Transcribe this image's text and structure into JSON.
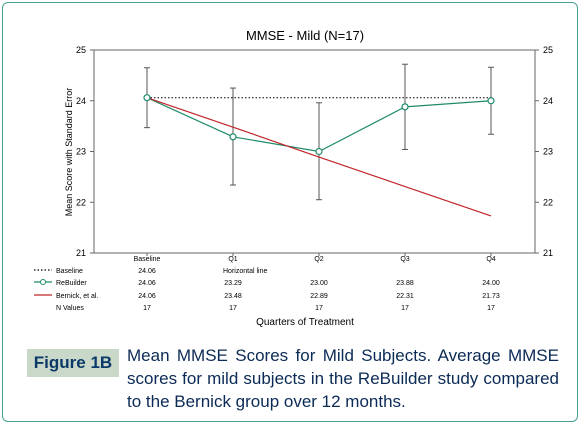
{
  "figure": {
    "label": "Figure 1B",
    "caption": "Mean MMSE Scores for Mild Subjects. Average MMSE scores for mild subjects in the ReBuilder study compared to the Bernick group over 12 months."
  },
  "chart_data": {
    "type": "line",
    "title": "MMSE - Mild (N=17)",
    "xlabel": "Quarters of Treatment",
    "ylabel": "Mean Score with Standard Error",
    "ylim": [
      21,
      25
    ],
    "yticks": [
      "21",
      "22",
      "23",
      "24",
      "25"
    ],
    "categories": [
      "Baseline",
      "Q1",
      "Q2",
      "Q3",
      "Q4"
    ],
    "series": [
      {
        "name": "Baseline",
        "style": "dotted",
        "color": "#000000",
        "values": [
          24.06,
          24.06,
          24.06,
          24.06,
          24.06
        ]
      },
      {
        "name": "ReBuilder",
        "style": "solid-markers",
        "color": "#1f8a6a",
        "values": [
          24.06,
          23.29,
          23.0,
          23.88,
          24.0
        ],
        "error_low": [
          23.47,
          22.34,
          22.05,
          23.04,
          23.34
        ],
        "error_high": [
          24.65,
          24.25,
          23.96,
          24.72,
          24.66
        ]
      },
      {
        "name": "Bernick, et al.",
        "style": "solid",
        "color": "#c0262b",
        "values": [
          24.06,
          23.48,
          22.89,
          22.31,
          21.73
        ]
      }
    ],
    "table": {
      "rows": [
        {
          "legend": "Baseline",
          "cells": [
            "24.06",
            "Horizontal line",
            "",
            "",
            ""
          ]
        },
        {
          "legend": "ReBuilder",
          "cells": [
            "24.06",
            "23.29",
            "23.00",
            "23.88",
            "24.00"
          ]
        },
        {
          "legend": "Bernick, et al.",
          "cells": [
            "24.06",
            "23.48",
            "22.89",
            "22.31",
            "21.73"
          ]
        },
        {
          "legend": "N Values",
          "cells": [
            "17",
            "17",
            "17",
            "17",
            "17"
          ]
        }
      ]
    },
    "grid": false
  }
}
